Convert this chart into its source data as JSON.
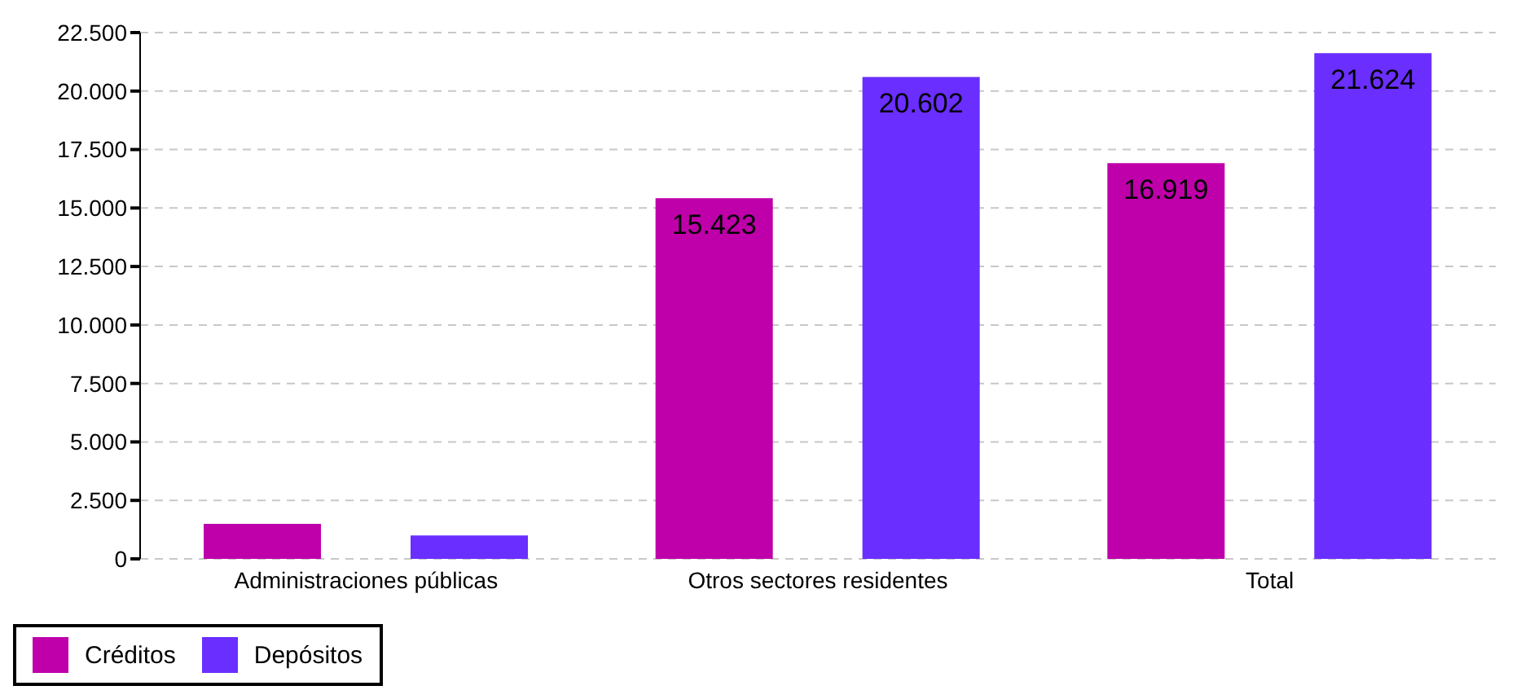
{
  "chart_data": {
    "type": "bar",
    "categories": [
      "Administraciones públicas",
      "Otros sectores residentes",
      "Total"
    ],
    "series": [
      {
        "name": "Créditos",
        "color": "#bf00aa",
        "values": [
          1500,
          15423,
          16919
        ],
        "value_labels": [
          null,
          "15.423",
          "16.919"
        ]
      },
      {
        "name": "Depósitos",
        "color": "#6a2eff",
        "values": [
          1000,
          20602,
          21624
        ],
        "value_labels": [
          null,
          "20.602",
          "21.624"
        ]
      }
    ],
    "ylim": [
      0,
      22500
    ],
    "yticks": [
      {
        "value": 0,
        "label": "0"
      },
      {
        "value": 2500,
        "label": "2.500"
      },
      {
        "value": 5000,
        "label": "5.000"
      },
      {
        "value": 7500,
        "label": "7.500"
      },
      {
        "value": 10000,
        "label": "10.000"
      },
      {
        "value": 12500,
        "label": "12.500"
      },
      {
        "value": 15000,
        "label": "15.000"
      },
      {
        "value": 17500,
        "label": "17.500"
      },
      {
        "value": 20000,
        "label": "20.000"
      },
      {
        "value": 22500,
        "label": "22.500"
      }
    ],
    "grid": "y",
    "legend": "bottom"
  }
}
